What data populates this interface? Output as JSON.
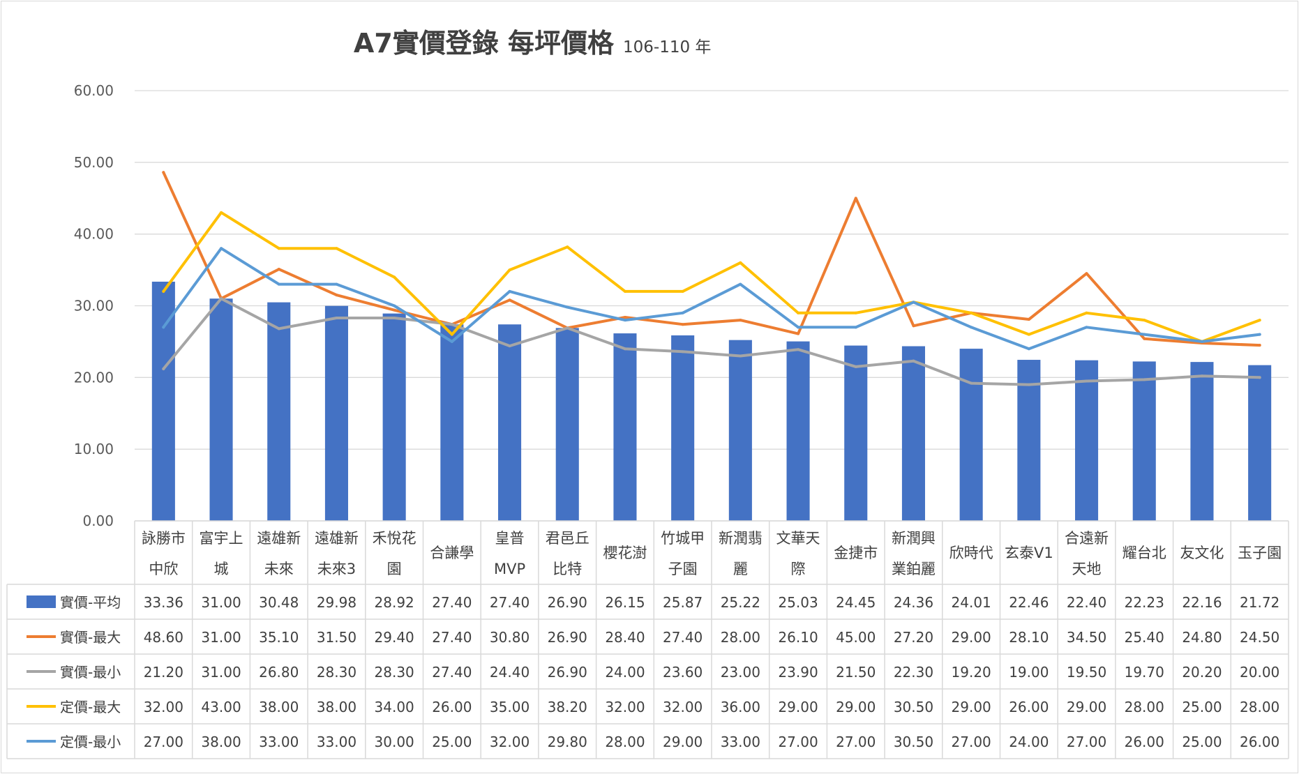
{
  "chart_data": {
    "type": "bar",
    "title": "A7實價登錄 每坪價格",
    "subtitle": "106-110 年",
    "ylim": [
      0,
      60
    ],
    "yticks": [
      "0.00",
      "10.00",
      "20.00",
      "30.00",
      "40.00",
      "50.00",
      "60.00"
    ],
    "grid": true,
    "legend": "data-table",
    "categories": [
      [
        "詠勝市",
        "中欣"
      ],
      [
        "富宇上",
        "城"
      ],
      [
        "遠雄新",
        "未來"
      ],
      [
        "遠雄新",
        "未來3"
      ],
      [
        "禾悅花",
        "園"
      ],
      [
        "合謙學"
      ],
      [
        "皇普",
        "MVP"
      ],
      [
        "君邑丘",
        "比特"
      ],
      [
        "櫻花澍"
      ],
      [
        "竹城甲",
        "子園"
      ],
      [
        "新潤翡",
        "麗"
      ],
      [
        "文華天",
        "際"
      ],
      [
        "金捷市"
      ],
      [
        "新潤興",
        "業鉑麗"
      ],
      [
        "欣時代"
      ],
      [
        "玄泰V1"
      ],
      [
        "合遠新",
        "天地"
      ],
      [
        "耀台北"
      ],
      [
        "友文化"
      ],
      [
        "玉子園"
      ]
    ],
    "series": [
      {
        "name": "實價-平均",
        "type": "bar",
        "color": "#4472C4",
        "values": [
          33.36,
          31.0,
          30.48,
          29.98,
          28.92,
          27.4,
          27.4,
          26.9,
          26.15,
          25.87,
          25.22,
          25.03,
          24.45,
          24.36,
          24.01,
          22.46,
          22.4,
          22.23,
          22.16,
          21.72
        ],
        "labels": [
          "33.36",
          "31.00",
          "30.48",
          "29.98",
          "28.92",
          "27.40",
          "27.40",
          "26.90",
          "26.15",
          "25.87",
          "25.22",
          "25.03",
          "24.45",
          "24.36",
          "24.01",
          "22.46",
          "22.40",
          "22.23",
          "22.16",
          "21.72"
        ]
      },
      {
        "name": "實價-最大",
        "type": "line",
        "color": "#ED7D31",
        "values": [
          48.6,
          31.0,
          35.1,
          31.5,
          29.4,
          27.4,
          30.8,
          26.9,
          28.4,
          27.4,
          28.0,
          26.1,
          45.0,
          27.2,
          29.0,
          28.1,
          34.5,
          25.4,
          24.8,
          24.5
        ],
        "labels": [
          "48.60",
          "31.00",
          "35.10",
          "31.50",
          "29.40",
          "27.40",
          "30.80",
          "26.90",
          "28.40",
          "27.40",
          "28.00",
          "26.10",
          "45.00",
          "27.20",
          "29.00",
          "28.10",
          "34.50",
          "25.40",
          "24.80",
          "24.50"
        ]
      },
      {
        "name": "實價-最小",
        "type": "line",
        "color": "#A5A5A5",
        "values": [
          21.2,
          31.0,
          26.8,
          28.3,
          28.3,
          27.4,
          24.4,
          26.9,
          24.0,
          23.6,
          23.0,
          23.9,
          21.5,
          22.3,
          19.2,
          19.0,
          19.5,
          19.7,
          20.2,
          20.0
        ],
        "labels": [
          "21.20",
          "31.00",
          "26.80",
          "28.30",
          "28.30",
          "27.40",
          "24.40",
          "26.90",
          "24.00",
          "23.60",
          "23.00",
          "23.90",
          "21.50",
          "22.30",
          "19.20",
          "19.00",
          "19.50",
          "19.70",
          "20.20",
          "20.00"
        ]
      },
      {
        "name": "定價-最大",
        "type": "line",
        "color": "#FFC000",
        "values": [
          32.0,
          43.0,
          38.0,
          38.0,
          34.0,
          26.0,
          35.0,
          38.2,
          32.0,
          32.0,
          36.0,
          29.0,
          29.0,
          30.5,
          29.0,
          26.0,
          29.0,
          28.0,
          25.0,
          28.0
        ],
        "labels": [
          "32.00",
          "43.00",
          "38.00",
          "38.00",
          "34.00",
          "26.00",
          "35.00",
          "38.20",
          "32.00",
          "32.00",
          "36.00",
          "29.00",
          "29.00",
          "30.50",
          "29.00",
          "26.00",
          "29.00",
          "28.00",
          "25.00",
          "28.00"
        ]
      },
      {
        "name": "定價-最小",
        "type": "line",
        "color": "#5B9BD5",
        "values": [
          27.0,
          38.0,
          33.0,
          33.0,
          30.0,
          25.0,
          32.0,
          29.8,
          28.0,
          29.0,
          33.0,
          27.0,
          27.0,
          30.5,
          27.0,
          24.0,
          27.0,
          26.0,
          25.0,
          26.0
        ],
        "labels": [
          "27.00",
          "38.00",
          "33.00",
          "33.00",
          "30.00",
          "25.00",
          "32.00",
          "29.80",
          "28.00",
          "29.00",
          "33.00",
          "27.00",
          "27.00",
          "30.50",
          "27.00",
          "24.00",
          "27.00",
          "26.00",
          "25.00",
          "26.00"
        ]
      }
    ]
  }
}
